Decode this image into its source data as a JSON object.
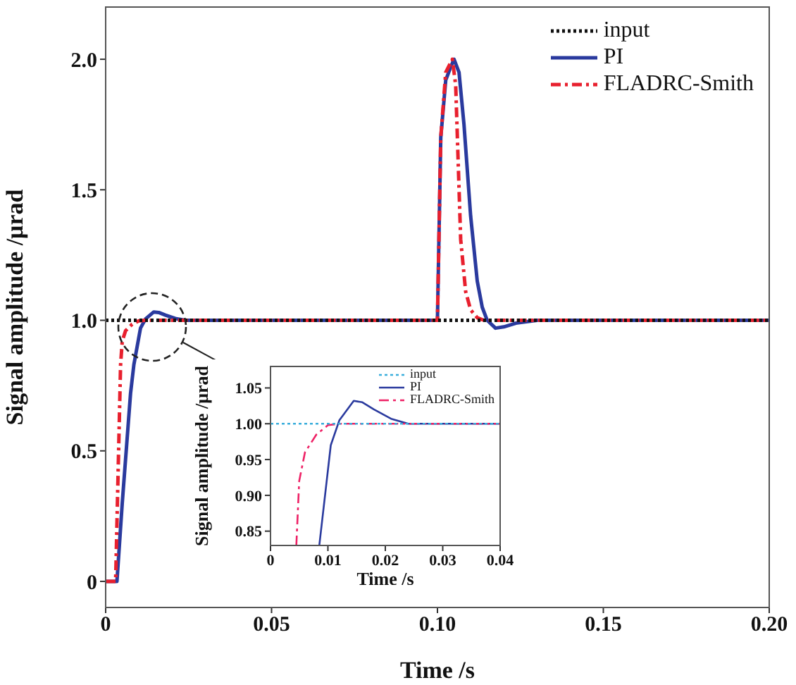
{
  "chart_data": [
    {
      "type": "line",
      "xlabel": "Time /s",
      "ylabel": "Signal amplitude /μrad",
      "xlim": [
        0,
        0.2
      ],
      "xticks": [
        0,
        0.05,
        {
          "value": 0.1,
          "label": "0.10"
        },
        0.15,
        {
          "value": 0.2,
          "label": "0.20"
        }
      ],
      "ylim": [
        -0.1,
        2.2
      ],
      "yticks": [
        0,
        0.5,
        {
          "value": 1,
          "label": "1.0"
        },
        1.5,
        {
          "value": 2,
          "label": "2.0"
        }
      ],
      "grid": false,
      "legend": "top right",
      "marker": "none",
      "series": [
        {
          "name": "input",
          "color": "#111111",
          "line_style": "dotted",
          "x": [
            0,
            0.2
          ],
          "values": [
            1,
            1
          ]
        },
        {
          "name": "PI",
          "color": "#2a3a9e",
          "line_style": "solid",
          "x": [
            0,
            0.0034,
            0.005,
            0.0075,
            0.0085,
            0.0105,
            0.012,
            0.0145,
            0.016,
            0.018,
            0.021,
            0.024,
            0.1,
            0.101,
            0.1025,
            0.104,
            0.105,
            0.1065,
            0.108,
            0.11,
            0.112,
            0.1135,
            0.115,
            0.1175,
            0.12,
            0.124,
            0.13,
            0.2
          ],
          "values": [
            0,
            0,
            0.3,
            0.72,
            0.83,
            0.97,
            1.005,
            1.032,
            1.03,
            1.02,
            1.007,
            1,
            1,
            1.7,
            1.92,
            1.97,
            2,
            1.95,
            1.75,
            1.4,
            1.15,
            1.05,
            1,
            0.97,
            0.975,
            0.99,
            1,
            1
          ]
        },
        {
          "name": "FLADRC-Smith",
          "color": "#e8202e",
          "line_style": "dashed",
          "x": [
            0,
            0.003,
            0.0045,
            0.005,
            0.006,
            0.008,
            0.01,
            0.012,
            0.1,
            0.101,
            0.1025,
            0.1045,
            0.1055,
            0.107,
            0.1085,
            0.11,
            0.112,
            0.114,
            0.2
          ],
          "values": [
            0,
            0,
            0.83,
            0.92,
            0.96,
            0.985,
            0.998,
            1,
            1,
            1.7,
            1.95,
            2,
            1.9,
            1.31,
            1.11,
            1.04,
            1.01,
            1,
            1
          ]
        }
      ]
    },
    {
      "type": "line",
      "xlabel": "Time /s",
      "ylabel": "Signal amplitude /μrad",
      "xlim": [
        0,
        0.04
      ],
      "xticks": [
        0,
        0.01,
        0.02,
        0.03,
        0.04
      ],
      "ylim": [
        0.83,
        1.08
      ],
      "yticks": [
        {
          "value": 0.85,
          "label": "0.85"
        },
        {
          "value": 0.9,
          "label": "0.90"
        },
        {
          "value": 0.95,
          "label": "0.95"
        },
        {
          "value": 1,
          "label": "1.00"
        },
        {
          "value": 1.05,
          "label": "1.05"
        }
      ],
      "grid": false,
      "legend": "top right",
      "marker": "none",
      "series": [
        {
          "name": "input",
          "color": "#3aaedc",
          "line_style": "dotted",
          "x": [
            0,
            0.04
          ],
          "values": [
            1,
            1
          ]
        },
        {
          "name": "PI",
          "color": "#2a3a9e",
          "line_style": "solid",
          "x": [
            0.0085,
            0.0105,
            0.012,
            0.0145,
            0.016,
            0.018,
            0.021,
            0.024,
            0.04
          ],
          "values": [
            0.83,
            0.97,
            1.005,
            1.032,
            1.03,
            1.02,
            1.007,
            1,
            1
          ]
        },
        {
          "name": "FLADRC-Smith",
          "color": "#ee2266",
          "line_style": "dashed",
          "x": [
            0.0045,
            0.005,
            0.006,
            0.008,
            0.01,
            0.012,
            0.04
          ],
          "values": [
            0.83,
            0.92,
            0.96,
            0.985,
            0.998,
            1,
            1
          ]
        }
      ]
    }
  ]
}
